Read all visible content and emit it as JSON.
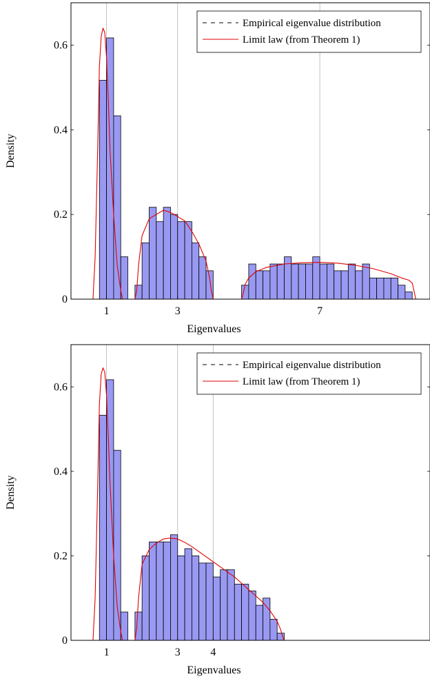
{
  "chart_data": [
    {
      "type": "bar",
      "xlabel": "Eigenvalues",
      "ylabel": "Density",
      "xlim": [
        0,
        10.1
      ],
      "ylim": [
        0,
        0.7
      ],
      "xticks": [
        1,
        3,
        7
      ],
      "xtick_labels": [
        "1",
        "3",
        "7"
      ],
      "yticks": [
        0,
        0.2,
        0.4,
        0.6
      ],
      "ytick_labels": [
        "0",
        "0.2",
        "0.4",
        "0.6"
      ],
      "grid": "vertical lines at x ticks",
      "legend": {
        "position": "top-right",
        "entries": [
          "Empirical eigenvalue distribution",
          "Limit law (from Theorem 1)"
        ]
      },
      "colors": {
        "bars": "#9999f2",
        "bar_edge": "#000000",
        "limit_line": "#e00000"
      },
      "histogram": {
        "bin_width": 0.2,
        "series": [
          {
            "name": "Empirical eigenvalue distribution",
            "bin_left": [
              0.6,
              0.8,
              1.0,
              1.2,
              1.4
            ],
            "values": [
              0,
              0.517,
              0.617,
              0.433,
              0.1
            ]
          },
          {
            "name": "Empirical eigenvalue distribution",
            "bin_left": [
              1.8,
              2.0,
              2.2,
              2.4,
              2.6,
              2.8,
              3.0,
              3.2,
              3.4,
              3.6,
              3.8
            ],
            "values": [
              0.033,
              0.133,
              0.217,
              0.183,
              0.217,
              0.2,
              0.183,
              0.183,
              0.133,
              0.1,
              0.067
            ]
          },
          {
            "name": "Empirical eigenvalue distribution",
            "bin_left": [
              4.8,
              5.0,
              5.2,
              5.4,
              5.6,
              5.8,
              6.0,
              6.2,
              6.4,
              6.6,
              6.8,
              7.0,
              7.2,
              7.4,
              7.6,
              7.8,
              8.0,
              8.2,
              8.4,
              8.6,
              8.8,
              9.0,
              9.2,
              9.4
            ],
            "values": [
              0.033,
              0.083,
              0.067,
              0.067,
              0.083,
              0.083,
              0.1,
              0.083,
              0.083,
              0.083,
              0.1,
              0.083,
              0.083,
              0.067,
              0.067,
              0.083,
              0.067,
              0.083,
              0.05,
              0.05,
              0.05,
              0.05,
              0.033,
              0.017
            ]
          }
        ]
      },
      "limit_law": {
        "name": "Limit law (from Theorem 1)",
        "x": [
          0.0,
          0.62,
          0.68,
          0.75,
          0.8,
          0.85,
          0.9,
          0.95,
          1.0,
          1.05,
          1.1,
          1.2,
          1.3,
          1.4,
          1.45,
          1.5,
          1.8,
          1.85,
          1.9,
          2.0,
          2.2,
          2.4,
          2.6,
          2.8,
          3.0,
          3.2,
          3.4,
          3.6,
          3.8,
          3.9,
          3.95,
          4.0,
          4.8,
          4.85,
          4.9,
          5.0,
          5.2,
          5.5,
          6.0,
          6.5,
          7.0,
          7.5,
          8.0,
          8.5,
          9.0,
          9.3,
          9.5,
          9.6,
          9.65,
          9.7,
          10.1
        ],
        "y": [
          0,
          0,
          0.1,
          0.35,
          0.55,
          0.62,
          0.64,
          0.63,
          0.57,
          0.47,
          0.35,
          0.2,
          0.08,
          0.02,
          0,
          0,
          0,
          0.02,
          0.08,
          0.15,
          0.19,
          0.2,
          0.21,
          0.205,
          0.195,
          0.185,
          0.16,
          0.13,
          0.09,
          0.05,
          0.02,
          0,
          0,
          0.015,
          0.035,
          0.05,
          0.065,
          0.075,
          0.083,
          0.086,
          0.087,
          0.085,
          0.08,
          0.072,
          0.06,
          0.05,
          0.045,
          0.038,
          0.02,
          0,
          0
        ]
      }
    },
    {
      "type": "bar",
      "xlabel": "Eigenvalues",
      "ylabel": "Density",
      "xlim": [
        0,
        10.1
      ],
      "ylim": [
        0,
        0.7
      ],
      "xticks": [
        1,
        3,
        4
      ],
      "xtick_labels": [
        "1",
        "3",
        "4"
      ],
      "yticks": [
        0,
        0.2,
        0.4,
        0.6
      ],
      "ytick_labels": [
        "0",
        "0.2",
        "0.4",
        "0.6"
      ],
      "grid": "vertical lines at x ticks",
      "legend": {
        "position": "top-right",
        "entries": [
          "Empirical eigenvalue distribution",
          "Limit law (from Theorem 1)"
        ]
      },
      "colors": {
        "bars": "#9999f2",
        "bar_edge": "#000000",
        "limit_line": "#e00000"
      },
      "histogram": {
        "bin_width": 0.2,
        "series": [
          {
            "name": "Empirical eigenvalue distribution",
            "bin_left": [
              0.6,
              0.8,
              1.0,
              1.2,
              1.4
            ],
            "values": [
              0,
              0.533,
              0.617,
              0.45,
              0.067
            ]
          },
          {
            "name": "Empirical eigenvalue distribution",
            "bin_left": [
              1.8,
              2.0,
              2.2,
              2.4,
              2.6,
              2.8,
              3.0,
              3.2,
              3.4,
              3.6,
              3.8,
              4.0,
              4.2,
              4.4,
              4.6,
              4.8,
              5.0,
              5.2,
              5.4,
              5.6,
              5.8,
              6.0
            ],
            "values": [
              0.067,
              0.2,
              0.233,
              0.233,
              0.233,
              0.25,
              0.2,
              0.217,
              0.2,
              0.183,
              0.183,
              0.15,
              0.167,
              0.167,
              0.133,
              0.133,
              0.117,
              0.083,
              0.1,
              0.05,
              0.017,
              0
            ]
          }
        ]
      },
      "limit_law": {
        "name": "Limit law (from Theorem 1)",
        "x": [
          0.0,
          0.62,
          0.68,
          0.75,
          0.8,
          0.85,
          0.9,
          0.95,
          1.0,
          1.05,
          1.1,
          1.2,
          1.3,
          1.4,
          1.45,
          1.5,
          1.8,
          1.85,
          1.9,
          2.0,
          2.2,
          2.4,
          2.6,
          2.8,
          3.0,
          3.2,
          3.4,
          3.6,
          3.8,
          4.0,
          4.2,
          4.4,
          4.6,
          4.8,
          5.0,
          5.2,
          5.4,
          5.6,
          5.8,
          5.9,
          5.95,
          6.0,
          10.1
        ],
        "y": [
          0,
          0,
          0.1,
          0.36,
          0.56,
          0.63,
          0.645,
          0.635,
          0.58,
          0.48,
          0.37,
          0.2,
          0.08,
          0.02,
          0,
          0,
          0,
          0.03,
          0.1,
          0.18,
          0.215,
          0.23,
          0.24,
          0.242,
          0.24,
          0.232,
          0.222,
          0.21,
          0.198,
          0.186,
          0.174,
          0.162,
          0.15,
          0.135,
          0.12,
          0.105,
          0.09,
          0.07,
          0.045,
          0.025,
          0.01,
          0,
          0
        ]
      }
    }
  ]
}
